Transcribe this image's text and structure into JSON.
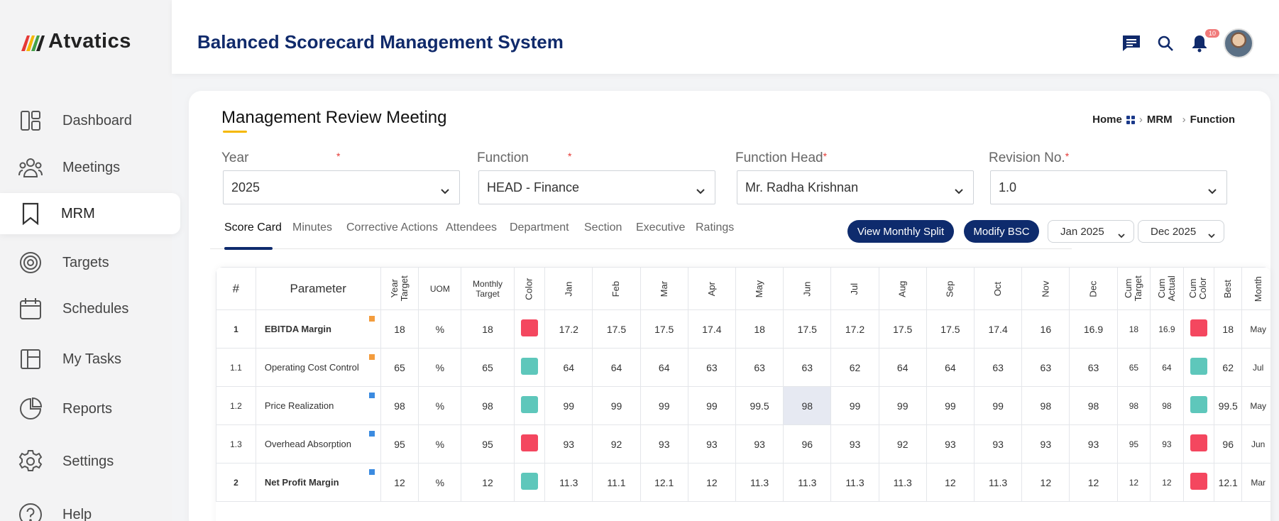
{
  "brand": {
    "name": "Atvatics"
  },
  "header": {
    "title": "Balanced Scorecard Management System",
    "notification_count": "10"
  },
  "sidebar": {
    "items": [
      {
        "label": "Dashboard",
        "icon": "dashboard-icon"
      },
      {
        "label": "Meetings",
        "icon": "meetings-icon"
      },
      {
        "label": "MRM",
        "icon": "bookmark-icon",
        "active": true
      },
      {
        "label": "Targets",
        "icon": "target-icon"
      },
      {
        "label": "Schedules",
        "icon": "calendar-icon"
      },
      {
        "label": "My Tasks",
        "icon": "tasks-icon"
      },
      {
        "label": "Reports",
        "icon": "pie-chart-icon"
      },
      {
        "label": "Settings",
        "icon": "gear-icon"
      },
      {
        "label": "Help",
        "icon": "help-icon"
      }
    ]
  },
  "page": {
    "title": "Management Review Meeting",
    "breadcrumb": {
      "home": "Home",
      "mrm": "MRM",
      "function": "Function"
    }
  },
  "filters": {
    "year": {
      "label": "Year",
      "required_mark": "*",
      "value": "2025"
    },
    "function": {
      "label": "Function",
      "required_mark": "*",
      "value": "HEAD - Finance"
    },
    "function_head": {
      "label": "Function Head",
      "required_mark": "*",
      "value": "Mr. Radha Krishnan"
    },
    "revision": {
      "label": "Revision No.",
      "required_mark": "*",
      "value": "1.0"
    }
  },
  "tabs": [
    "Score Card",
    "Minutes",
    "Corrective Actions",
    "Attendees",
    "Department",
    "Section",
    "Executive",
    "Ratings"
  ],
  "actions": {
    "view_monthly_split": "View Monthly Split",
    "modify_bsc": "Modify BSC",
    "from_month": "Jan 2025",
    "to_month": "Dec 2025"
  },
  "colors": {
    "red": "#f4475f",
    "teal": "#5ec7bb",
    "orange_marker": "#f39c3d",
    "blue_marker": "#3b8be0",
    "navy": "#0e2b6d"
  },
  "table": {
    "headers": [
      "#",
      "Parameter",
      "Year Target",
      "UOM",
      "Monthly Target",
      "Color",
      "Jan",
      "Feb",
      "Mar",
      "Apr",
      "May",
      "Jun",
      "Jul",
      "Aug",
      "Sep",
      "Oct",
      "Nov",
      "Dec",
      "Cum Target",
      "Cum Actual",
      "Cum Color",
      "Best",
      "Month"
    ],
    "rows": [
      {
        "no": "1",
        "param": "EBITDA Margin",
        "bold": true,
        "marker": "orange",
        "year_target": "18",
        "uom": "%",
        "monthly_target": "18",
        "color": "red",
        "months": [
          "17.2",
          "17.5",
          "17.5",
          "17.4",
          "18",
          "17.5",
          "17.2",
          "17.5",
          "17.5",
          "17.4",
          "16",
          "16.9"
        ],
        "cum_target": "18",
        "cum_actual": "16.9",
        "cum_color": "red",
        "best": "18",
        "month": "May"
      },
      {
        "no": "1.1",
        "param": "Operating Cost Control",
        "bold": false,
        "marker": "orange",
        "year_target": "65",
        "uom": "%",
        "monthly_target": "65",
        "color": "teal",
        "months": [
          "64",
          "64",
          "64",
          "63",
          "63",
          "63",
          "62",
          "64",
          "64",
          "63",
          "63",
          "63"
        ],
        "cum_target": "65",
        "cum_actual": "64",
        "cum_color": "teal",
        "best": "62",
        "month": "Jul"
      },
      {
        "no": "1.2",
        "param": "Price Realization",
        "bold": false,
        "marker": "blue",
        "year_target": "98",
        "uom": "%",
        "monthly_target": "98",
        "color": "teal",
        "months": [
          "99",
          "99",
          "99",
          "99",
          "99.5",
          "98",
          "99",
          "99",
          "99",
          "99",
          "98",
          "98"
        ],
        "cum_target": "98",
        "cum_actual": "98",
        "cum_color": "teal",
        "best": "99.5",
        "month": "May"
      },
      {
        "no": "1.3",
        "param": "Overhead Absorption",
        "bold": false,
        "marker": "blue",
        "year_target": "95",
        "uom": "%",
        "monthly_target": "95",
        "color": "red",
        "months": [
          "93",
          "92",
          "93",
          "93",
          "93",
          "96",
          "93",
          "92",
          "93",
          "93",
          "93",
          "93"
        ],
        "cum_target": "95",
        "cum_actual": "93",
        "cum_color": "red",
        "best": "96",
        "month": "Jun"
      },
      {
        "no": "2",
        "param": "Net Profit Margin",
        "bold": true,
        "marker": "blue",
        "year_target": "12",
        "uom": "%",
        "monthly_target": "12",
        "color": "teal",
        "months": [
          "11.3",
          "11.1",
          "12.1",
          "12",
          "11.3",
          "11.3",
          "11.3",
          "11.3",
          "12",
          "11.3",
          "12",
          "12"
        ],
        "cum_target": "12",
        "cum_actual": "12",
        "cum_color": "red",
        "best": "12.1",
        "month": "Mar"
      }
    ]
  }
}
